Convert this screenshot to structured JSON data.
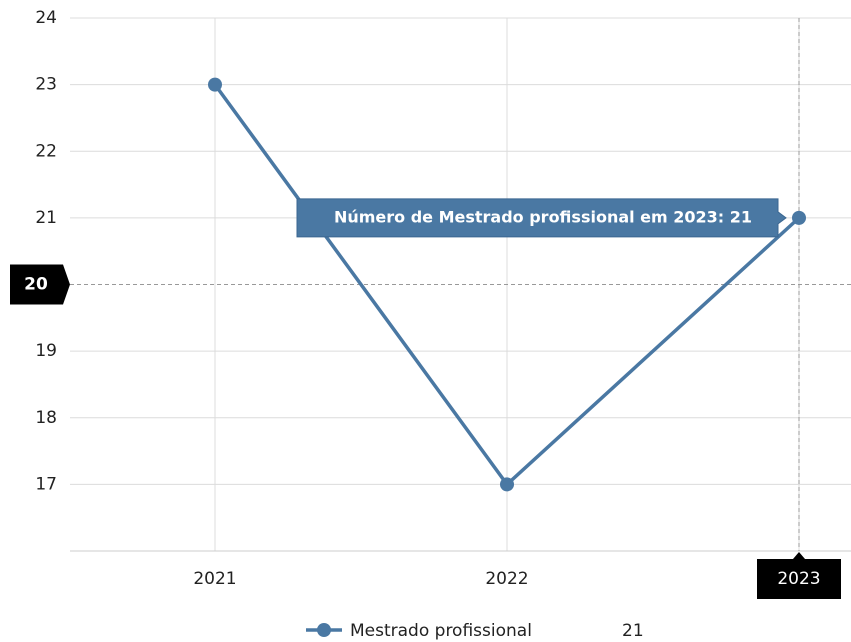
{
  "chart_data": {
    "type": "line",
    "categories": [
      "2021",
      "2022",
      "2023"
    ],
    "series": [
      {
        "name": "Mestrado profissional",
        "color": "#4a78a3",
        "values": [
          23,
          17,
          21
        ]
      }
    ],
    "ylim": [
      16,
      24
    ],
    "yticks": [
      17,
      18,
      19,
      20,
      21,
      22,
      23,
      24
    ],
    "grid": true,
    "crosshair": {
      "x": "2023",
      "y": 20
    },
    "tooltip": "Número de Mestrado profissional em 2023: 21",
    "legend": "bottom"
  }
}
